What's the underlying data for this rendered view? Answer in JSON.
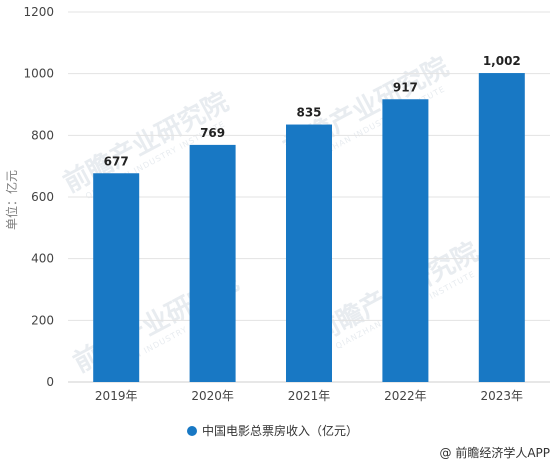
{
  "chart_data": {
    "type": "bar",
    "categories": [
      "2019年",
      "2020年",
      "2021年",
      "2022年",
      "2023年"
    ],
    "series": [
      {
        "name": "中国电影总票房收入（亿元）",
        "values": [
          677,
          769,
          835,
          917,
          1002
        ],
        "data_labels": [
          "677",
          "769",
          "835",
          "917",
          "1,002"
        ]
      }
    ],
    "ylabel": "单位：亿元",
    "xlabel": "",
    "ylim": [
      0,
      1200
    ],
    "yticks": [
      0,
      200,
      400,
      600,
      800,
      1000,
      1200
    ],
    "ytick_labels": [
      "0",
      "200",
      "400",
      "600",
      "800",
      "1000",
      "1200"
    ],
    "grid": true,
    "legend_position": "bottom",
    "bar_color": "#1878c4"
  },
  "watermark": {
    "text": "前瞻产业研究院",
    "subtext": "QIANZHAN INDUSTRY INSTITUTE"
  },
  "source": "@ 前瞻经济学人APP"
}
